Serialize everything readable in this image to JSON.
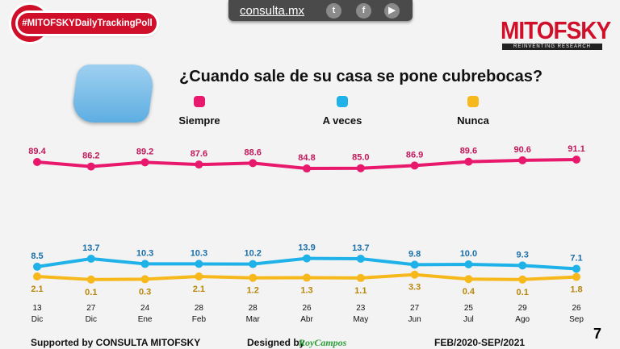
{
  "header": {
    "site": "consulta.mx",
    "social_icons": [
      "twitter-icon",
      "facebook-icon",
      "youtube-icon"
    ],
    "hashtag": "#MITOFSKYDailyTrackingPoll",
    "brand": "MITOFSKY",
    "brand_tagline": "REINVENTING RESEARCH"
  },
  "chart_data": {
    "type": "line",
    "title": "¿Cuando sale de su casa se pone cubrebocas?",
    "categories": [
      [
        "13",
        "Dic"
      ],
      [
        "27",
        "Dic"
      ],
      [
        "24",
        "Ene"
      ],
      [
        "28",
        "Feb"
      ],
      [
        "28",
        "Mar"
      ],
      [
        "26",
        "Abr"
      ],
      [
        "23",
        "May"
      ],
      [
        "27",
        "Jun"
      ],
      [
        "25",
        "Jul"
      ],
      [
        "29",
        "Ago"
      ],
      [
        "26",
        "Sep"
      ]
    ],
    "legend_position": "top",
    "grid": false,
    "series": [
      {
        "name": "Siempre",
        "color": "#e8186c",
        "values": [
          89.4,
          86.2,
          89.2,
          87.6,
          88.6,
          84.8,
          85.0,
          86.9,
          89.6,
          90.6,
          91.1
        ],
        "label_color": "#c2185b"
      },
      {
        "name": "A veces",
        "color": "#1fb2e8",
        "values": [
          8.5,
          13.7,
          10.3,
          10.3,
          10.2,
          13.9,
          13.7,
          9.8,
          10.0,
          9.3,
          7.1
        ],
        "label_color": "#1a6fa8"
      },
      {
        "name": "Nunca",
        "color": "#f7b81c",
        "values": [
          2.1,
          0.1,
          0.3,
          2.1,
          1.2,
          1.3,
          1.1,
          3.3,
          0.4,
          0.1,
          1.8
        ],
        "label_color": "#b8860b"
      }
    ]
  },
  "footer": {
    "supported": "Supported by   CONSULTA   MITOFSKY",
    "designed": "Designed by",
    "designer": "RoyCampos",
    "period": "FEB/2020-SEP/2021",
    "page": "7"
  }
}
